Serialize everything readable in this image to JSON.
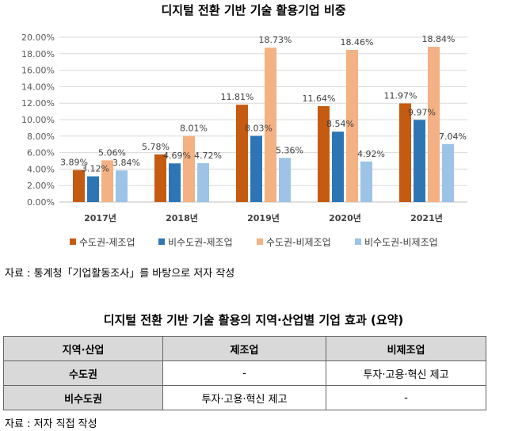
{
  "chart_title": "디지털 전환 기반 기술 활용기업 비중",
  "chart_data": {
    "type": "bar",
    "title": "디지털 전환 기반 기술 활용기업 비중",
    "categories": [
      "2017년",
      "2018년",
      "2019년",
      "2020년",
      "2021년"
    ],
    "series": [
      {
        "name": "수도권-제조업",
        "color": "#c55a11",
        "values": [
          3.89,
          5.78,
          11.81,
          11.64,
          11.97
        ],
        "labels": [
          "3.89%",
          "5.78%",
          "11.81%",
          "11.64%",
          "11.97%"
        ]
      },
      {
        "name": "비수도권-제조업",
        "color": "#2e75b6",
        "values": [
          3.12,
          4.69,
          8.03,
          8.54,
          9.97
        ],
        "labels": [
          "3.12%",
          "4.69%",
          "8.03%",
          "8.54%",
          "9.97%"
        ]
      },
      {
        "name": "수도권-비제조업",
        "color": "#f4b183",
        "values": [
          5.06,
          8.01,
          18.73,
          18.46,
          18.84
        ],
        "labels": [
          "5.06%",
          "8.01%",
          "18.73%",
          "18.46%",
          "18.84%"
        ]
      },
      {
        "name": "비수도권-비제조업",
        "color": "#9dc3e6",
        "values": [
          3.84,
          4.72,
          5.36,
          4.92,
          7.04
        ],
        "labels": [
          "3.84%",
          "4.72%",
          "5.36%",
          "4.92%",
          "7.04%"
        ]
      }
    ],
    "ylim": [
      0,
      20
    ],
    "yticks": [
      "0.00%",
      "2.00%",
      "4.00%",
      "6.00%",
      "8.00%",
      "10.00%",
      "12.00%",
      "14.00%",
      "16.00%",
      "18.00%",
      "20.00%"
    ],
    "grid": true,
    "legend": "bottom"
  },
  "source1": "자료 : 통계청「기업활동조사」를 바탕으로 저자 작성",
  "table": {
    "title": "디지털 전환 기반 기술 활용의 지역·산업별 기업 효과 (요약)",
    "headers": [
      "지역·산업",
      "제조업",
      "비제조업"
    ],
    "rows": [
      [
        "수도권",
        "-",
        "투자·고용·혁신 제고"
      ],
      [
        "비수도권",
        "투자·고용·혁신 제고",
        "-"
      ]
    ]
  },
  "source2": "자료 : 저자 직접 작성"
}
